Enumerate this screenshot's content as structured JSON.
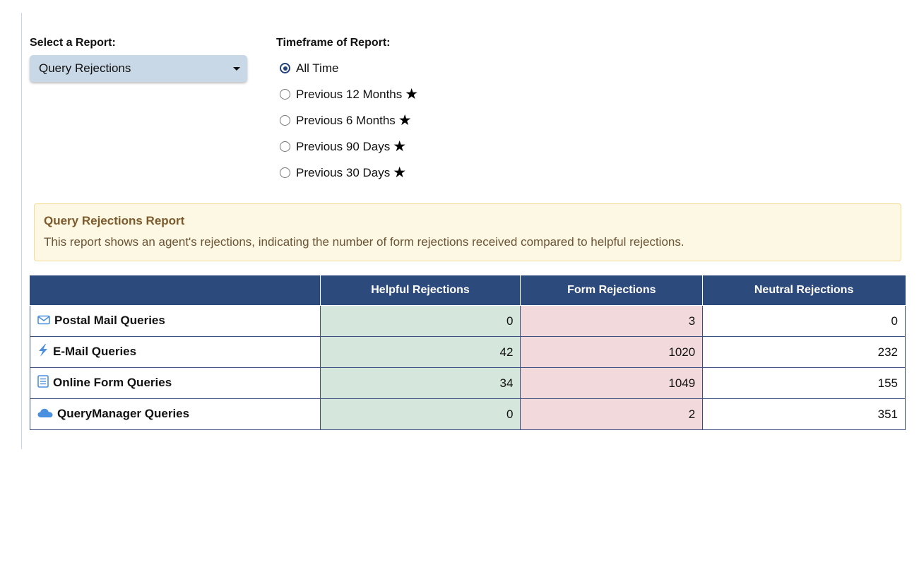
{
  "report_select": {
    "label": "Select a Report:",
    "selected": "Query Rejections"
  },
  "timeframe": {
    "label": "Timeframe of Report:",
    "options": [
      {
        "label": "All Time",
        "checked": true,
        "starred": false
      },
      {
        "label": "Previous 12 Months",
        "checked": false,
        "starred": true
      },
      {
        "label": "Previous 6 Months",
        "checked": false,
        "starred": true
      },
      {
        "label": "Previous 90 Days",
        "checked": false,
        "starred": true
      },
      {
        "label": "Previous 30 Days",
        "checked": false,
        "starred": true
      }
    ],
    "star_glyph": "★"
  },
  "info": {
    "title": "Query Rejections Report",
    "description": "This report shows an agent's rejections, indicating the number of form rejections received compared to helpful rejections."
  },
  "table": {
    "headers": [
      "",
      "Helpful Rejections",
      "Form Rejections",
      "Neutral Rejections"
    ],
    "rows": [
      {
        "icon": "envelope-icon",
        "label": "Postal Mail Queries",
        "helpful": "0",
        "form": "3",
        "neutral": "0"
      },
      {
        "icon": "lightning-bolt-icon",
        "label": "E-Mail Queries",
        "helpful": "42",
        "form": "1020",
        "neutral": "232"
      },
      {
        "icon": "document-icon",
        "label": "Online Form Queries",
        "helpful": "34",
        "form": "1049",
        "neutral": "155"
      },
      {
        "icon": "cloud-icon",
        "label": "QueryManager Queries",
        "helpful": "0",
        "form": "2",
        "neutral": "351"
      }
    ]
  },
  "colors": {
    "header_bg": "#2d4a7d",
    "helpful_bg": "#d5e6dc",
    "form_bg": "#f2d9dc",
    "icon_blue": "#4a8fe0"
  }
}
